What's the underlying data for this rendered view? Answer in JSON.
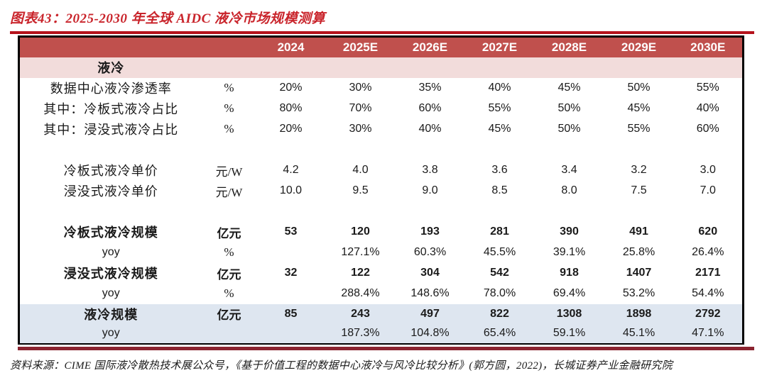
{
  "figure": {
    "title": "图表43：2025-2030 年全球 AIDC 液冷市场规模测算",
    "source": "资料来源：CIME 国际液冷散热技术展公众号，《基于价值工程的数据中心液冷与风冷比较分析》(郭方圆，2022)，长城证券产业金融研究院"
  },
  "colors": {
    "title_red": "#C9242B",
    "rule_red": "#B5121B",
    "header_bg": "#C0504D",
    "header_text": "#FFFFFF",
    "section_pink_bg": "#F2DCDB",
    "highlight_blue_bg": "#DEE6F0",
    "bottom_band": "#8B2430",
    "border_black": "#000000",
    "body_text": "#1A1A1A"
  },
  "chart_data": {
    "type": "table",
    "title": "2025-2030 年全球 AIDC 液冷市场规模测算",
    "columns": [
      "",
      "",
      "2024",
      "2025E",
      "2026E",
      "2027E",
      "2028E",
      "2029E",
      "2030E"
    ],
    "rows": [
      {
        "label": "液冷",
        "unit": "",
        "values": [
          "",
          "",
          "",
          "",
          "",
          "",
          ""
        ],
        "bold": true,
        "bg": "pink"
      },
      {
        "label": "数据中心液冷渗透率",
        "unit": "%",
        "values": [
          "20%",
          "30%",
          "35%",
          "40%",
          "45%",
          "50%",
          "55%"
        ]
      },
      {
        "label": "其中：冷板式液冷占比",
        "unit": "%",
        "values": [
          "80%",
          "70%",
          "60%",
          "55%",
          "50%",
          "45%",
          "40%"
        ]
      },
      {
        "label": "其中：浸没式液冷占比",
        "unit": "%",
        "values": [
          "20%",
          "30%",
          "40%",
          "45%",
          "50%",
          "55%",
          "60%"
        ]
      },
      {
        "label": "",
        "unit": "",
        "values": [
          "",
          "",
          "",
          "",
          "",
          "",
          ""
        ],
        "spacer": true
      },
      {
        "label": "冷板式液冷单价",
        "unit": "元/W",
        "values": [
          "4.2",
          "4.0",
          "3.8",
          "3.6",
          "3.4",
          "3.2",
          "3.0"
        ]
      },
      {
        "label": "浸没式液冷单价",
        "unit": "元/W",
        "values": [
          "10.0",
          "9.5",
          "9.0",
          "8.5",
          "8.0",
          "7.5",
          "7.0"
        ]
      },
      {
        "label": "",
        "unit": "",
        "values": [
          "",
          "",
          "",
          "",
          "",
          "",
          ""
        ],
        "spacer": true
      },
      {
        "label": "冷板式液冷规模",
        "unit": "亿元",
        "values": [
          "53",
          "120",
          "193",
          "281",
          "390",
          "491",
          "620"
        ],
        "bold": true
      },
      {
        "label": "yoy",
        "unit": "%",
        "values": [
          "",
          "127.1%",
          "60.3%",
          "45.5%",
          "39.1%",
          "25.8%",
          "26.4%"
        ]
      },
      {
        "label": "浸没式液冷规模",
        "unit": "亿元",
        "values": [
          "32",
          "122",
          "304",
          "542",
          "918",
          "1407",
          "2171"
        ],
        "bold": true
      },
      {
        "label": "yoy",
        "unit": "%",
        "values": [
          "",
          "288.4%",
          "148.6%",
          "78.0%",
          "69.4%",
          "53.2%",
          "54.4%"
        ]
      },
      {
        "label": "液冷规模",
        "unit": "亿元",
        "values": [
          "85",
          "243",
          "497",
          "822",
          "1308",
          "1898",
          "2792"
        ],
        "bold": true,
        "bg": "blue"
      },
      {
        "label": "yoy",
        "unit": "",
        "values": [
          "",
          "187.3%",
          "104.8%",
          "65.4%",
          "59.1%",
          "45.1%",
          "47.1%"
        ],
        "bg": "blue"
      }
    ]
  }
}
